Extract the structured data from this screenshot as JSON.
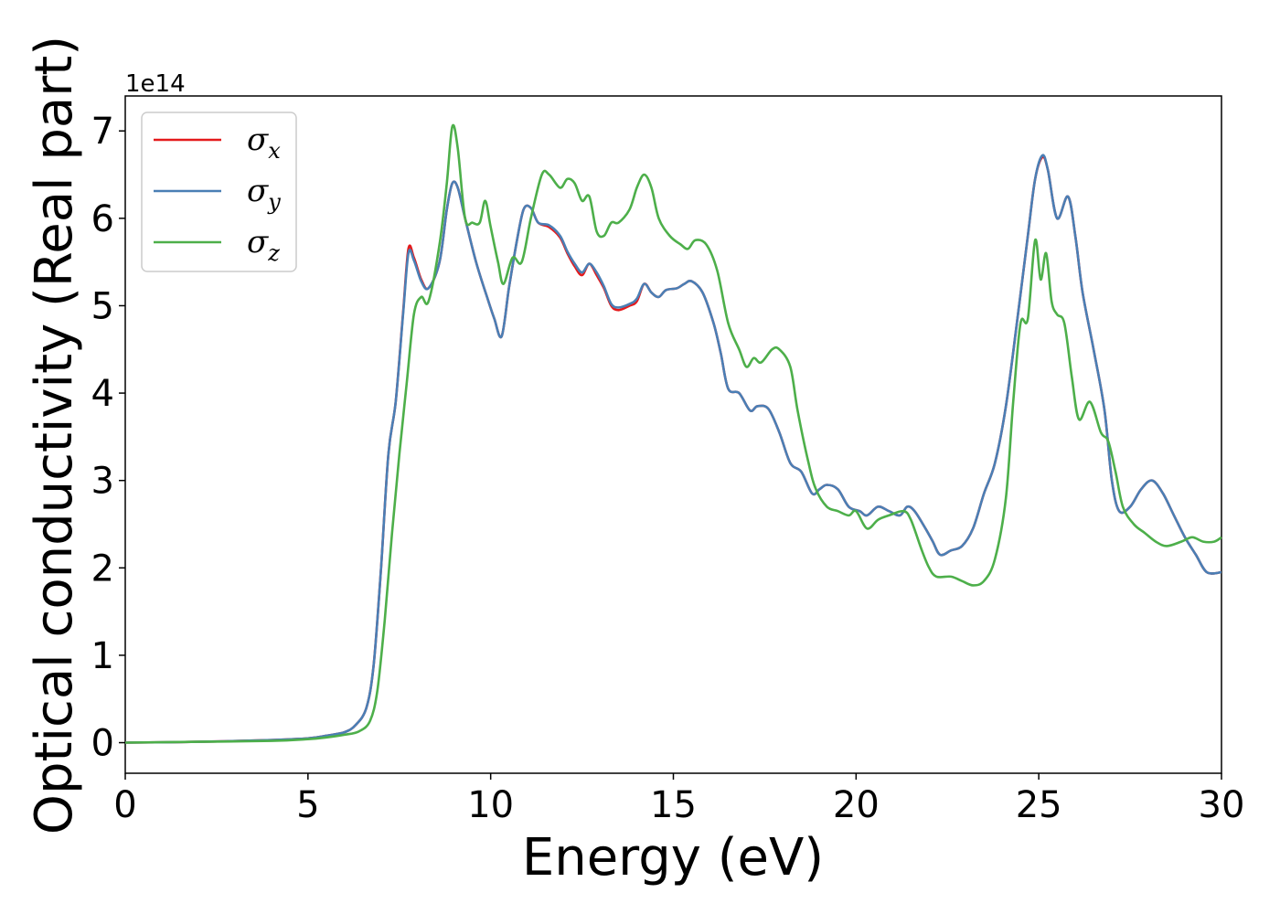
{
  "chart_data": {
    "type": "line",
    "xlabel": "Energy (eV)",
    "ylabel": "Optical conductivity (Real part)",
    "y_offset_label": "1e14",
    "xlim": [
      0,
      30
    ],
    "ylim": [
      -0.35,
      7.4
    ],
    "x_ticks": [
      0,
      5,
      10,
      15,
      20,
      25,
      30
    ],
    "x_tick_labels": [
      "0",
      "5",
      "10",
      "15",
      "20",
      "25",
      "30"
    ],
    "y_ticks": [
      0,
      1,
      2,
      3,
      4,
      5,
      6,
      7
    ],
    "y_tick_labels": [
      "0",
      "1",
      "2",
      "3",
      "4",
      "5",
      "6",
      "7"
    ],
    "grid": false,
    "legend_position": "top-left",
    "series": [
      {
        "name": "σx",
        "legend_symbol": "σ",
        "legend_sub": "x",
        "color": "#e41a1c",
        "points": [
          [
            0,
            0
          ],
          [
            2,
            0.01
          ],
          [
            4,
            0.03
          ],
          [
            5,
            0.05
          ],
          [
            5.5,
            0.08
          ],
          [
            6,
            0.12
          ],
          [
            6.3,
            0.2
          ],
          [
            6.6,
            0.4
          ],
          [
            6.8,
            0.9
          ],
          [
            7,
            2.0
          ],
          [
            7.2,
            3.3
          ],
          [
            7.4,
            3.9
          ],
          [
            7.6,
            4.9
          ],
          [
            7.75,
            5.65
          ],
          [
            7.9,
            5.55
          ],
          [
            8.1,
            5.3
          ],
          [
            8.3,
            5.2
          ],
          [
            8.6,
            5.5
          ],
          [
            8.8,
            6.1
          ],
          [
            8.95,
            6.4
          ],
          [
            9.1,
            6.35
          ],
          [
            9.3,
            6.0
          ],
          [
            9.6,
            5.5
          ],
          [
            9.9,
            5.1
          ],
          [
            10.1,
            4.85
          ],
          [
            10.3,
            4.65
          ],
          [
            10.5,
            5.2
          ],
          [
            10.7,
            5.7
          ],
          [
            10.9,
            6.1
          ],
          [
            11.1,
            6.12
          ],
          [
            11.3,
            5.95
          ],
          [
            11.6,
            5.9
          ],
          [
            11.9,
            5.78
          ],
          [
            12.1,
            5.6
          ],
          [
            12.3,
            5.45
          ],
          [
            12.5,
            5.35
          ],
          [
            12.7,
            5.48
          ],
          [
            12.9,
            5.35
          ],
          [
            13.1,
            5.2
          ],
          [
            13.3,
            5.0
          ],
          [
            13.5,
            4.95
          ],
          [
            13.8,
            5.0
          ],
          [
            14.0,
            5.05
          ],
          [
            14.2,
            5.25
          ],
          [
            14.4,
            5.15
          ],
          [
            14.6,
            5.1
          ],
          [
            14.8,
            5.18
          ],
          [
            15.1,
            5.2
          ],
          [
            15.3,
            5.25
          ],
          [
            15.5,
            5.28
          ],
          [
            15.8,
            5.15
          ],
          [
            16.1,
            4.8
          ],
          [
            16.3,
            4.45
          ],
          [
            16.5,
            4.05
          ],
          [
            16.8,
            4.0
          ],
          [
            17.1,
            3.8
          ],
          [
            17.3,
            3.85
          ],
          [
            17.6,
            3.82
          ],
          [
            17.9,
            3.55
          ],
          [
            18.2,
            3.2
          ],
          [
            18.5,
            3.1
          ],
          [
            18.8,
            2.85
          ],
          [
            19.0,
            2.9
          ],
          [
            19.2,
            2.95
          ],
          [
            19.5,
            2.9
          ],
          [
            19.8,
            2.7
          ],
          [
            20.1,
            2.65
          ],
          [
            20.3,
            2.6
          ],
          [
            20.6,
            2.7
          ],
          [
            20.9,
            2.65
          ],
          [
            21.2,
            2.6
          ],
          [
            21.4,
            2.7
          ],
          [
            21.6,
            2.65
          ],
          [
            21.9,
            2.45
          ],
          [
            22.1,
            2.3
          ],
          [
            22.3,
            2.15
          ],
          [
            22.6,
            2.2
          ],
          [
            22.9,
            2.25
          ],
          [
            23.2,
            2.45
          ],
          [
            23.5,
            2.85
          ],
          [
            23.8,
            3.2
          ],
          [
            24.1,
            3.85
          ],
          [
            24.4,
            4.8
          ],
          [
            24.7,
            5.8
          ],
          [
            24.9,
            6.45
          ],
          [
            25.1,
            6.7
          ],
          [
            25.25,
            6.55
          ],
          [
            25.5,
            6.0
          ],
          [
            25.8,
            6.25
          ],
          [
            26.0,
            5.8
          ],
          [
            26.2,
            5.15
          ],
          [
            26.5,
            4.5
          ],
          [
            26.8,
            3.8
          ],
          [
            27.0,
            3.0
          ],
          [
            27.2,
            2.65
          ],
          [
            27.5,
            2.7
          ],
          [
            27.8,
            2.9
          ],
          [
            28.1,
            3.0
          ],
          [
            28.4,
            2.85
          ],
          [
            28.7,
            2.6
          ],
          [
            29.0,
            2.35
          ],
          [
            29.3,
            2.15
          ],
          [
            29.6,
            1.95
          ],
          [
            30,
            1.95
          ]
        ]
      },
      {
        "name": "σy",
        "legend_symbol": "σ",
        "legend_sub": "y",
        "color": "#4a7fb5",
        "points": [
          [
            0,
            0
          ],
          [
            2,
            0.01
          ],
          [
            4,
            0.03
          ],
          [
            5,
            0.05
          ],
          [
            5.5,
            0.08
          ],
          [
            6,
            0.12
          ],
          [
            6.3,
            0.2
          ],
          [
            6.6,
            0.4
          ],
          [
            6.8,
            0.9
          ],
          [
            7,
            2.0
          ],
          [
            7.2,
            3.3
          ],
          [
            7.4,
            3.9
          ],
          [
            7.6,
            4.88
          ],
          [
            7.75,
            5.6
          ],
          [
            7.9,
            5.52
          ],
          [
            8.1,
            5.28
          ],
          [
            8.3,
            5.2
          ],
          [
            8.6,
            5.5
          ],
          [
            8.8,
            6.1
          ],
          [
            8.95,
            6.4
          ],
          [
            9.1,
            6.35
          ],
          [
            9.3,
            6.0
          ],
          [
            9.6,
            5.5
          ],
          [
            9.9,
            5.1
          ],
          [
            10.1,
            4.85
          ],
          [
            10.3,
            4.65
          ],
          [
            10.5,
            5.2
          ],
          [
            10.7,
            5.7
          ],
          [
            10.9,
            6.1
          ],
          [
            11.1,
            6.12
          ],
          [
            11.3,
            5.95
          ],
          [
            11.6,
            5.92
          ],
          [
            11.9,
            5.8
          ],
          [
            12.1,
            5.62
          ],
          [
            12.3,
            5.48
          ],
          [
            12.5,
            5.38
          ],
          [
            12.7,
            5.48
          ],
          [
            12.9,
            5.38
          ],
          [
            13.1,
            5.22
          ],
          [
            13.3,
            5.02
          ],
          [
            13.5,
            4.98
          ],
          [
            13.8,
            5.02
          ],
          [
            14.0,
            5.08
          ],
          [
            14.2,
            5.25
          ],
          [
            14.4,
            5.15
          ],
          [
            14.6,
            5.1
          ],
          [
            14.8,
            5.18
          ],
          [
            15.1,
            5.2
          ],
          [
            15.3,
            5.25
          ],
          [
            15.5,
            5.28
          ],
          [
            15.8,
            5.15
          ],
          [
            16.1,
            4.8
          ],
          [
            16.3,
            4.45
          ],
          [
            16.5,
            4.05
          ],
          [
            16.8,
            4.0
          ],
          [
            17.1,
            3.8
          ],
          [
            17.3,
            3.85
          ],
          [
            17.6,
            3.82
          ],
          [
            17.9,
            3.55
          ],
          [
            18.2,
            3.2
          ],
          [
            18.5,
            3.1
          ],
          [
            18.8,
            2.85
          ],
          [
            19.0,
            2.9
          ],
          [
            19.2,
            2.95
          ],
          [
            19.5,
            2.9
          ],
          [
            19.8,
            2.7
          ],
          [
            20.1,
            2.65
          ],
          [
            20.3,
            2.6
          ],
          [
            20.6,
            2.7
          ],
          [
            20.9,
            2.65
          ],
          [
            21.2,
            2.6
          ],
          [
            21.4,
            2.7
          ],
          [
            21.6,
            2.65
          ],
          [
            21.9,
            2.45
          ],
          [
            22.1,
            2.3
          ],
          [
            22.3,
            2.15
          ],
          [
            22.6,
            2.2
          ],
          [
            22.9,
            2.25
          ],
          [
            23.2,
            2.45
          ],
          [
            23.5,
            2.85
          ],
          [
            23.8,
            3.2
          ],
          [
            24.1,
            3.85
          ],
          [
            24.4,
            4.8
          ],
          [
            24.7,
            5.8
          ],
          [
            24.9,
            6.45
          ],
          [
            25.1,
            6.72
          ],
          [
            25.25,
            6.55
          ],
          [
            25.5,
            6.0
          ],
          [
            25.8,
            6.25
          ],
          [
            26.0,
            5.8
          ],
          [
            26.2,
            5.15
          ],
          [
            26.5,
            4.5
          ],
          [
            26.8,
            3.8
          ],
          [
            27.0,
            3.0
          ],
          [
            27.2,
            2.65
          ],
          [
            27.5,
            2.7
          ],
          [
            27.8,
            2.9
          ],
          [
            28.1,
            3.0
          ],
          [
            28.4,
            2.85
          ],
          [
            28.7,
            2.6
          ],
          [
            29.0,
            2.35
          ],
          [
            29.3,
            2.15
          ],
          [
            29.6,
            1.95
          ],
          [
            30,
            1.95
          ]
        ]
      },
      {
        "name": "σz",
        "legend_symbol": "σ",
        "legend_sub": "z",
        "color": "#4daf4a",
        "points": [
          [
            0,
            0
          ],
          [
            2,
            0.01
          ],
          [
            4,
            0.02
          ],
          [
            5,
            0.04
          ],
          [
            5.5,
            0.06
          ],
          [
            6,
            0.09
          ],
          [
            6.4,
            0.13
          ],
          [
            6.7,
            0.25
          ],
          [
            6.9,
            0.6
          ],
          [
            7.1,
            1.4
          ],
          [
            7.3,
            2.4
          ],
          [
            7.5,
            3.3
          ],
          [
            7.7,
            4.1
          ],
          [
            7.9,
            4.9
          ],
          [
            8.1,
            5.1
          ],
          [
            8.3,
            5.05
          ],
          [
            8.6,
            5.7
          ],
          [
            8.8,
            6.4
          ],
          [
            8.95,
            7.05
          ],
          [
            9.1,
            6.8
          ],
          [
            9.3,
            6.0
          ],
          [
            9.5,
            5.95
          ],
          [
            9.7,
            5.95
          ],
          [
            9.85,
            6.2
          ],
          [
            10.0,
            5.9
          ],
          [
            10.2,
            5.5
          ],
          [
            10.35,
            5.25
          ],
          [
            10.6,
            5.55
          ],
          [
            10.85,
            5.5
          ],
          [
            11.1,
            6.0
          ],
          [
            11.4,
            6.5
          ],
          [
            11.6,
            6.5
          ],
          [
            11.9,
            6.35
          ],
          [
            12.1,
            6.45
          ],
          [
            12.3,
            6.4
          ],
          [
            12.5,
            6.2
          ],
          [
            12.7,
            6.25
          ],
          [
            12.9,
            5.85
          ],
          [
            13.1,
            5.8
          ],
          [
            13.3,
            5.95
          ],
          [
            13.5,
            5.95
          ],
          [
            13.8,
            6.1
          ],
          [
            14.0,
            6.35
          ],
          [
            14.2,
            6.5
          ],
          [
            14.4,
            6.35
          ],
          [
            14.6,
            6.0
          ],
          [
            14.9,
            5.8
          ],
          [
            15.2,
            5.7
          ],
          [
            15.4,
            5.65
          ],
          [
            15.6,
            5.75
          ],
          [
            15.9,
            5.7
          ],
          [
            16.2,
            5.4
          ],
          [
            16.5,
            4.8
          ],
          [
            16.8,
            4.5
          ],
          [
            17.0,
            4.3
          ],
          [
            17.2,
            4.4
          ],
          [
            17.4,
            4.35
          ],
          [
            17.7,
            4.5
          ],
          [
            17.9,
            4.5
          ],
          [
            18.2,
            4.3
          ],
          [
            18.4,
            3.8
          ],
          [
            18.7,
            3.2
          ],
          [
            18.9,
            2.9
          ],
          [
            19.2,
            2.7
          ],
          [
            19.5,
            2.65
          ],
          [
            19.8,
            2.6
          ],
          [
            20.0,
            2.65
          ],
          [
            20.3,
            2.45
          ],
          [
            20.6,
            2.55
          ],
          [
            20.9,
            2.6
          ],
          [
            21.3,
            2.65
          ],
          [
            21.5,
            2.55
          ],
          [
            21.8,
            2.2
          ],
          [
            22.0,
            2.0
          ],
          [
            22.2,
            1.9
          ],
          [
            22.6,
            1.9
          ],
          [
            22.9,
            1.85
          ],
          [
            23.2,
            1.8
          ],
          [
            23.5,
            1.85
          ],
          [
            23.8,
            2.1
          ],
          [
            24.1,
            2.8
          ],
          [
            24.3,
            3.9
          ],
          [
            24.5,
            4.8
          ],
          [
            24.7,
            4.85
          ],
          [
            24.9,
            5.75
          ],
          [
            25.05,
            5.3
          ],
          [
            25.2,
            5.6
          ],
          [
            25.35,
            5.05
          ],
          [
            25.5,
            4.9
          ],
          [
            25.7,
            4.8
          ],
          [
            25.9,
            4.2
          ],
          [
            26.1,
            3.7
          ],
          [
            26.4,
            3.9
          ],
          [
            26.7,
            3.55
          ],
          [
            26.9,
            3.45
          ],
          [
            27.1,
            3.1
          ],
          [
            27.3,
            2.7
          ],
          [
            27.6,
            2.5
          ],
          [
            27.9,
            2.4
          ],
          [
            28.2,
            2.3
          ],
          [
            28.5,
            2.25
          ],
          [
            28.9,
            2.3
          ],
          [
            29.2,
            2.35
          ],
          [
            29.5,
            2.3
          ],
          [
            29.8,
            2.3
          ],
          [
            30,
            2.35
          ]
        ]
      }
    ]
  }
}
